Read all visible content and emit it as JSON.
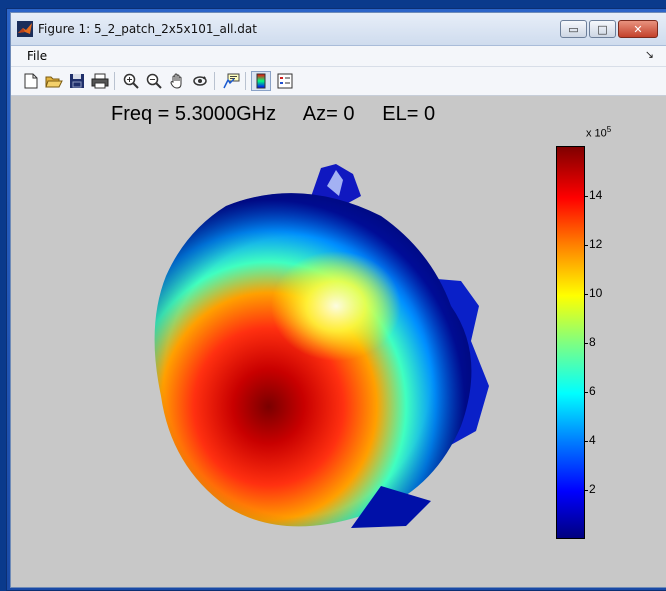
{
  "window": {
    "title": "Figure 1: 5_2_patch_2x5x101_all.dat",
    "min_symbol": "▭",
    "max_symbol": "□",
    "close_symbol": "✕"
  },
  "menu": {
    "items": [
      "File"
    ],
    "dock_symbol": "↘"
  },
  "toolbar": {
    "buttons": [
      "new-figure",
      "open-file",
      "save",
      "print",
      "zoom-in",
      "zoom-out",
      "pan",
      "rotate-3d",
      "data-cursor",
      "colorbar",
      "legend"
    ],
    "pressed": "colorbar"
  },
  "plot": {
    "title": "Freq = 5.3000GHz     Az= 0     EL= 0",
    "colormap": [
      "#00007f",
      "#0000ff",
      "#0080ff",
      "#00ffff",
      "#80ff80",
      "#ffff00",
      "#ff8000",
      "#ff0000",
      "#800000"
    ]
  },
  "colorbar": {
    "multiplier": "x 10",
    "exponent": "5",
    "ticks": [
      "14",
      "12",
      "10",
      "8",
      "6",
      "4",
      "2"
    ]
  },
  "colors": {
    "figure_background": "#c8c8c8",
    "window_frame": "#1a4aa6"
  }
}
